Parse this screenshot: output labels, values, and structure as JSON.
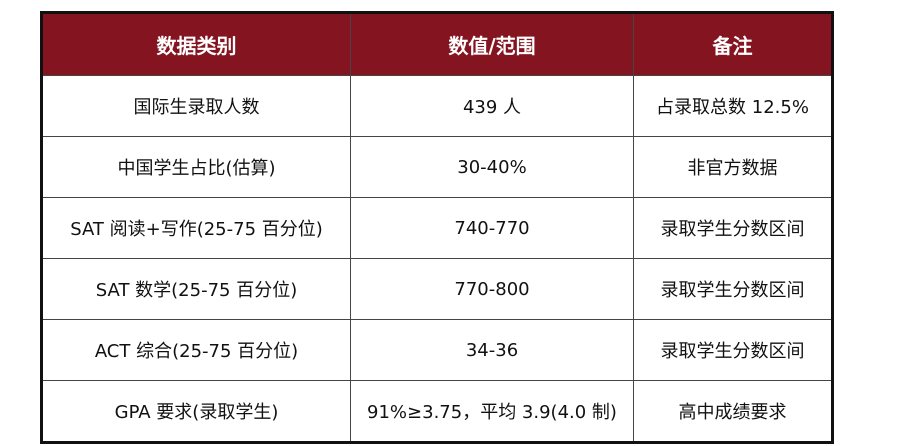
{
  "table": {
    "headers": [
      "数据类别",
      "数值/范围",
      "备注"
    ],
    "header_color": "#841420",
    "rows": [
      [
        "国际生录取人数",
        "439 人",
        "占录取总数 12.5%"
      ],
      [
        "中国学生占比(估算)",
        "30-40%",
        "非官方数据"
      ],
      [
        "SAT 阅读+写作(25-75 百分位)",
        "740-770",
        "录取学生分数区间"
      ],
      [
        "SAT 数学(25-75 百分位)",
        "770-800",
        "录取学生分数区间"
      ],
      [
        "ACT 综合(25-75 百分位)",
        "34-36",
        "录取学生分数区间"
      ],
      [
        "GPA 要求(录取学生)",
        "91%≥3.75，平均 3.9(4.0 制)",
        "高中成绩要求"
      ]
    ]
  }
}
